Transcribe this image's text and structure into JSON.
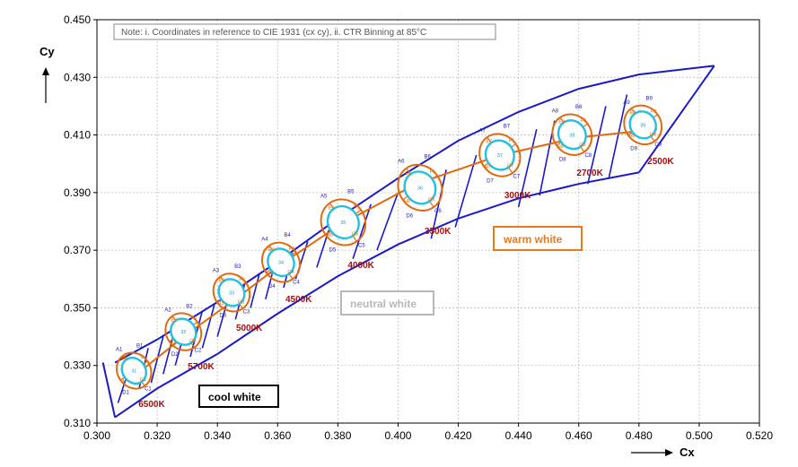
{
  "chart_data": {
    "type": "scatter",
    "title": "",
    "xlabel": "Cx",
    "ylabel": "Cy",
    "xlim": [
      0.3,
      0.52
    ],
    "ylim": [
      0.31,
      0.45
    ],
    "x_ticks": [
      "0.300",
      "0.320",
      "0.340",
      "0.360",
      "0.380",
      "0.400",
      "0.420",
      "0.440",
      "0.460",
      "0.480",
      "0.500",
      "0.520"
    ],
    "y_ticks": [
      "0.310",
      "0.330",
      "0.350",
      "0.370",
      "0.390",
      "0.410",
      "0.430",
      "0.450"
    ],
    "grid": true,
    "note": "Note: i. Coordinates in reference to CIE 1931 (cx cy), ii. CTR Binning at 85°C",
    "envelope": {
      "upper": [
        [
          0.306,
          0.331
        ],
        [
          0.32,
          0.339
        ],
        [
          0.34,
          0.352
        ],
        [
          0.36,
          0.366
        ],
        [
          0.38,
          0.381
        ],
        [
          0.4,
          0.395
        ],
        [
          0.42,
          0.408
        ],
        [
          0.44,
          0.418
        ],
        [
          0.46,
          0.426
        ],
        [
          0.48,
          0.431
        ],
        [
          0.505,
          0.434
        ]
      ],
      "lower": [
        [
          0.306,
          0.312
        ],
        [
          0.32,
          0.322
        ],
        [
          0.34,
          0.334
        ],
        [
          0.36,
          0.348
        ],
        [
          0.38,
          0.361
        ],
        [
          0.4,
          0.372
        ],
        [
          0.42,
          0.381
        ],
        [
          0.44,
          0.388
        ],
        [
          0.46,
          0.393
        ],
        [
          0.48,
          0.397
        ]
      ],
      "bottom_edge": [
        [
          0.306,
          0.312
        ],
        [
          0.302,
          0.331
        ]
      ],
      "top_right_edge": [
        [
          0.505,
          0.434
        ],
        [
          0.48,
          0.397
        ]
      ]
    },
    "planckian_locus": [
      [
        0.312,
        0.326
      ],
      [
        0.33,
        0.341
      ],
      [
        0.346,
        0.353
      ],
      [
        0.361,
        0.365
      ],
      [
        0.381,
        0.379
      ],
      [
        0.406,
        0.393
      ],
      [
        0.434,
        0.403
      ],
      [
        0.459,
        0.409
      ],
      [
        0.486,
        0.412
      ]
    ],
    "bin_dividers": [
      [
        [
          0.307,
          0.317
        ],
        [
          0.312,
          0.333
        ]
      ],
      [
        [
          0.314,
          0.322
        ],
        [
          0.317,
          0.336
        ]
      ],
      [
        [
          0.318,
          0.324
        ],
        [
          0.322,
          0.34
        ]
      ],
      [
        [
          0.322,
          0.327
        ],
        [
          0.326,
          0.343
        ]
      ],
      [
        [
          0.326,
          0.33
        ],
        [
          0.33,
          0.345
        ]
      ],
      [
        [
          0.331,
          0.333
        ],
        [
          0.335,
          0.349
        ]
      ],
      [
        [
          0.335,
          0.336
        ],
        [
          0.339,
          0.351
        ]
      ],
      [
        [
          0.34,
          0.34
        ],
        [
          0.344,
          0.355
        ]
      ],
      [
        [
          0.346,
          0.346
        ],
        [
          0.349,
          0.358
        ]
      ],
      [
        [
          0.351,
          0.35
        ],
        [
          0.354,
          0.362
        ]
      ],
      [
        [
          0.356,
          0.353
        ],
        [
          0.359,
          0.365
        ]
      ],
      [
        [
          0.362,
          0.357
        ],
        [
          0.365,
          0.369
        ]
      ],
      [
        [
          0.366,
          0.36
        ],
        [
          0.37,
          0.373
        ]
      ],
      [
        [
          0.373,
          0.364
        ],
        [
          0.377,
          0.377
        ]
      ],
      [
        [
          0.385,
          0.367
        ],
        [
          0.391,
          0.386
        ]
      ],
      [
        [
          0.393,
          0.37
        ],
        [
          0.4,
          0.39
        ]
      ],
      [
        [
          0.411,
          0.374
        ],
        [
          0.416,
          0.398
        ]
      ],
      [
        [
          0.419,
          0.378
        ],
        [
          0.426,
          0.403
        ]
      ],
      [
        [
          0.44,
          0.385
        ],
        [
          0.446,
          0.412
        ]
      ],
      [
        [
          0.447,
          0.389
        ],
        [
          0.452,
          0.415
        ]
      ],
      [
        [
          0.463,
          0.393
        ],
        [
          0.469,
          0.42
        ]
      ],
      [
        [
          0.47,
          0.395
        ],
        [
          0.476,
          0.424
        ]
      ]
    ],
    "ellipses": [
      {
        "cct": "6500K",
        "center": [
          0.3123,
          0.3282
        ],
        "label": "31",
        "outer_rx": 6.2,
        "outer_ry": 5.5,
        "inner_rx": 4.5,
        "inner_ry": 3.8,
        "upper_bins": [
          "A1",
          "B1"
        ],
        "lower_bins": [
          "D1",
          "C1"
        ],
        "f_labels": [
          "E1",
          "F1",
          "G1",
          "H1"
        ]
      },
      {
        "cct": "5700K",
        "center": [
          0.3287,
          0.3417
        ],
        "label": "32",
        "outer_rx": 6.4,
        "outer_ry": 5.7,
        "inner_rx": 4.5,
        "inner_ry": 4.0,
        "upper_bins": [
          "A2",
          "B2"
        ],
        "lower_bins": [
          "D2",
          "C2"
        ],
        "f_labels": [
          "E2",
          "F2",
          "G2",
          "H2"
        ]
      },
      {
        "cct": "5000K",
        "center": [
          0.3447,
          0.3553
        ],
        "label": "33",
        "outer_rx": 6.5,
        "outer_ry": 5.8,
        "inner_rx": 4.6,
        "inner_ry": 4.1,
        "upper_bins": [
          "A3",
          "B3"
        ],
        "lower_bins": [
          "D3",
          "C3"
        ],
        "f_labels": [
          "E3",
          "F3",
          "G3",
          "H3"
        ]
      },
      {
        "cct": "4500K",
        "center": [
          0.3611,
          0.3658
        ],
        "label": "34",
        "outer_rx": 6.8,
        "outer_ry": 6.0,
        "inner_rx": 4.7,
        "inner_ry": 4.2,
        "upper_bins": [
          "A4",
          "B4"
        ],
        "lower_bins": [
          "D4",
          "C4"
        ],
        "f_labels": [
          "E4",
          "F4",
          "G4",
          "H4"
        ]
      },
      {
        "cct": "4000K",
        "center": [
          0.3818,
          0.3797
        ],
        "label": "35",
        "outer_rx": 7.8,
        "outer_ry": 7.2,
        "inner_rx": 5.5,
        "inner_ry": 5.0,
        "upper_bins": [
          "A5",
          "B5"
        ],
        "lower_bins": [
          "D5",
          "C5"
        ],
        "f_labels": [
          "E5",
          "F5",
          "G5",
          "H5"
        ]
      },
      {
        "cct": "3500K",
        "center": [
          0.4073,
          0.3917
        ],
        "label": "36",
        "outer_rx": 7.9,
        "outer_ry": 7.0,
        "inner_rx": 5.5,
        "inner_ry": 5.0,
        "upper_bins": [
          "A6",
          "B6"
        ],
        "lower_bins": [
          "D6",
          "C6"
        ],
        "f_labels": [
          "E6",
          "F6",
          "G6",
          "H6"
        ]
      },
      {
        "cct": "3000K",
        "center": [
          0.4338,
          0.403
        ],
        "label": "37",
        "outer_rx": 7.3,
        "outer_ry": 6.5,
        "inner_rx": 5.0,
        "inner_ry": 4.6,
        "upper_bins": [
          "A7",
          "B7"
        ],
        "lower_bins": [
          "D7",
          "C7"
        ],
        "f_labels": [
          "E7",
          "F7",
          "G7",
          "H7"
        ]
      },
      {
        "cct": "2700K",
        "center": [
          0.4578,
          0.4101
        ],
        "label": "38",
        "outer_rx": 7.0,
        "outer_ry": 6.3,
        "inner_rx": 4.9,
        "inner_ry": 4.4,
        "upper_bins": [
          "A8",
          "B8"
        ],
        "lower_bins": [
          "D8",
          "C8"
        ],
        "f_labels": [
          "E8",
          "F8",
          "G8",
          "H8"
        ]
      },
      {
        "cct": "2500K",
        "center": [
          0.4813,
          0.4135
        ],
        "label": "39",
        "outer_rx": 6.7,
        "outer_ry": 6.0,
        "inner_rx": 4.6,
        "inner_ry": 4.2,
        "upper_bins": [
          "A9",
          "B9"
        ],
        "lower_bins": [
          "D9",
          "C9"
        ],
        "f_labels": [
          "E9",
          "F9",
          "G9",
          "H9"
        ]
      }
    ],
    "cct_labels": [
      "6500K",
      "5700K",
      "5000K",
      "4500K",
      "4000K",
      "3500K",
      "3000K",
      "2700K",
      "2500K"
    ],
    "regions": [
      {
        "label": "cool white",
        "color": "#000000"
      },
      {
        "label": "neutral white",
        "color": "#b8b8b8"
      },
      {
        "label": "warm white",
        "color": "#e87a1e"
      }
    ],
    "colors": {
      "bin_lines": "#1a1ac8",
      "ellipse_outer": "#e06a10",
      "ellipse_inner": "#22c0e0",
      "locus": "#e06a10",
      "cct_text": "#a01010"
    }
  }
}
